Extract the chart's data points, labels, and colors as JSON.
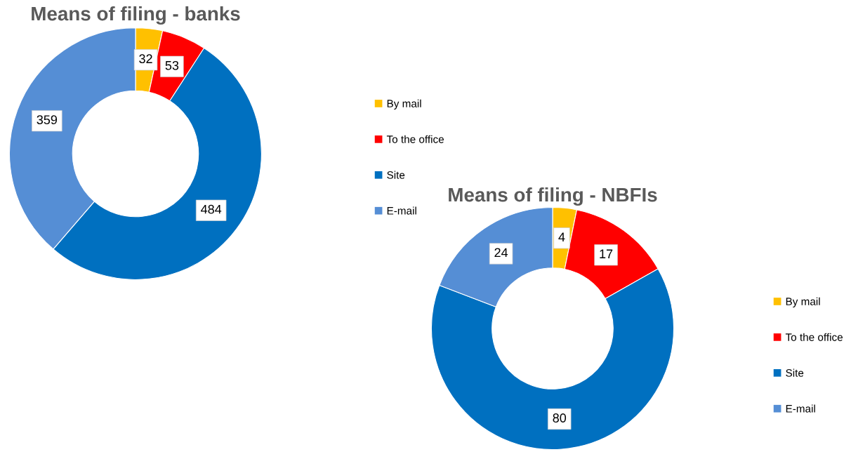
{
  "chart_data": [
    {
      "type": "donut",
      "title": "Means of filing - banks",
      "categories": [
        "By mail",
        "To the office",
        "Site",
        "E-mail"
      ],
      "values": [
        32,
        53,
        484,
        359
      ],
      "colors": [
        "#ffc000",
        "#ff0000",
        "#0070c0",
        "#558ed5"
      ],
      "data_labels": true,
      "legend": "right"
    },
    {
      "type": "donut",
      "title": "Means of filing - NBFIs",
      "categories": [
        "By mail",
        "To the office",
        "Site",
        "E-mail"
      ],
      "values": [
        4,
        17,
        80,
        24
      ],
      "colors": [
        "#ffc000",
        "#ff0000",
        "#0070c0",
        "#558ed5"
      ],
      "data_labels": true,
      "legend": "right"
    }
  ]
}
